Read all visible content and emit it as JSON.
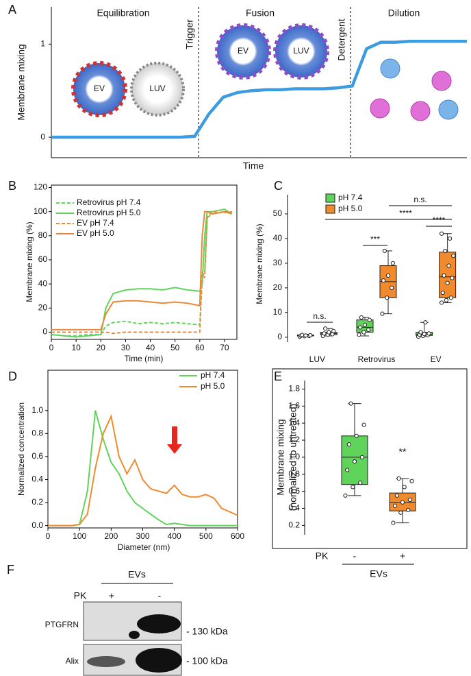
{
  "panel_labels": [
    "A",
    "B",
    "C",
    "D",
    "E",
    "F"
  ],
  "chart_data": [
    {
      "type": "line",
      "ylabel": "Membrane mixing",
      "xlabel": "Time",
      "ylim": [
        -0.22,
        1.4
      ],
      "yticks": [
        0,
        1
      ],
      "sections": [
        "Equilibration",
        "Fusion",
        "Dilution"
      ],
      "events": [
        "Trigger",
        "Detergent"
      ],
      "vesicle_labels": [
        "EV",
        "LUV",
        "EV",
        "LUV"
      ],
      "color": "#3d9be0",
      "values": [
        0,
        0,
        0,
        0,
        0,
        0,
        0,
        0,
        0,
        0,
        0.01,
        0.25,
        0.43,
        0.48,
        0.5,
        0.51,
        0.51,
        0.52,
        0.52,
        0.52,
        0.53,
        0.55,
        0.95,
        1.02,
        1.02,
        1.03,
        1.03,
        1.03,
        1.03,
        1.03
      ]
    },
    {
      "type": "line",
      "xlabel": "Time (min)",
      "ylabel": "Membrane mixing (%)",
      "xlim": [
        0,
        75
      ],
      "xticks": [
        0,
        10,
        20,
        30,
        40,
        50,
        60,
        70
      ],
      "ylim": [
        -6,
        122
      ],
      "yticks": [
        0,
        20,
        40,
        60,
        80,
        100,
        120
      ],
      "x": [
        0,
        5,
        10,
        15,
        20,
        22,
        25,
        30,
        35,
        40,
        45,
        50,
        55,
        60,
        61,
        62,
        63,
        65,
        70,
        73
      ],
      "series": [
        {
          "name": "Retrovirus pH 7.4",
          "color": "#5fd35a",
          "style": "dashed",
          "values": [
            -2,
            -3,
            -3,
            -2,
            -2,
            5,
            8,
            9,
            7,
            8,
            7,
            8,
            7,
            6,
            45,
            50,
            95,
            98,
            100,
            98
          ]
        },
        {
          "name": "Retrovirus pH 5.0",
          "color": "#5fd35a",
          "style": "solid",
          "values": [
            -2,
            -3,
            -4,
            -3,
            -2,
            20,
            32,
            35,
            36,
            36,
            35,
            37,
            35,
            34,
            40,
            80,
            100,
            100,
            102,
            98
          ]
        },
        {
          "name": "EV pH 7.4",
          "color": "#e8893a",
          "style": "dashed",
          "values": [
            0,
            0,
            0,
            0,
            0,
            0,
            -1,
            0,
            0,
            0,
            0,
            0,
            0,
            0,
            50,
            45,
            95,
            100,
            99,
            100
          ]
        },
        {
          "name": "EV pH 5.0",
          "color": "#e8893a",
          "style": "solid",
          "values": [
            2,
            2,
            2,
            2,
            2,
            15,
            25,
            26,
            26,
            25,
            24,
            25,
            24,
            22,
            80,
            100,
            100,
            98,
            100,
            99
          ]
        }
      ]
    },
    {
      "type": "box",
      "ylabel": "Membrane mixing (%)",
      "categories": [
        "LUV",
        "Retrovirus",
        "EV"
      ],
      "ylim": [
        -2,
        55
      ],
      "yticks": [
        0,
        10,
        20,
        30,
        40,
        50
      ],
      "series": [
        {
          "name": "pH 7.4",
          "color": "#5fd35a",
          "boxes": [
            {
              "min": 0.3,
              "q1": 0.5,
              "median": 0.7,
              "q3": 0.9,
              "max": 1.2
            },
            {
              "min": 0.5,
              "q1": 2,
              "median": 4,
              "q3": 7,
              "max": 8
            },
            {
              "min": 0.3,
              "q1": 0.7,
              "median": 1.2,
              "q3": 2,
              "max": 6
            }
          ],
          "points": [
            [
              0.2,
              0.4,
              0.5,
              0.6,
              0.7,
              0.8,
              0.9
            ],
            [
              1,
              2,
              3,
              4,
              5,
              7,
              8
            ],
            [
              0.2,
              0.5,
              0.8,
              1,
              1.3,
              1.5,
              2,
              6
            ]
          ]
        },
        {
          "name": "pH 5.0",
          "color": "#f08a2c",
          "boxes": [
            {
              "min": 0.5,
              "q1": 1,
              "median": 1.5,
              "q3": 2,
              "max": 3.5
            },
            {
              "min": 9.5,
              "q1": 16,
              "median": 22.5,
              "q3": 29,
              "max": 35
            },
            {
              "min": 14,
              "q1": 16,
              "median": 24.5,
              "q3": 34.5,
              "max": 42
            }
          ],
          "points": [
            [
              0.5,
              1,
              1.2,
              1.5,
              2,
              2.5,
              3.5
            ],
            [
              9.5,
              16,
              20,
              23,
              25,
              30,
              35
            ],
            [
              14,
              15,
              16,
              18,
              22,
              24,
              25,
              29,
              33,
              35,
              40,
              42
            ]
          ]
        }
      ],
      "annotations": [
        "n.s.",
        "***",
        "****",
        "****",
        "n.s."
      ]
    },
    {
      "type": "line",
      "xlabel": "Diameter (nm)",
      "ylabel": "Normalized concentration",
      "xlim": [
        0,
        600
      ],
      "xticks": [
        0,
        100,
        200,
        300,
        400,
        500,
        600
      ],
      "ylim": [
        -0.02,
        1.35
      ],
      "yticks": [
        {
          "value": 0,
          "label": "0.0"
        },
        0.2,
        0.4,
        0.6,
        0.8,
        {
          "value": 1,
          "label": "1.0"
        }
      ],
      "x": [
        0,
        25,
        50,
        75,
        100,
        125,
        150,
        175,
        200,
        225,
        250,
        275,
        300,
        325,
        350,
        375,
        400,
        425,
        450,
        475,
        500,
        525,
        550,
        575,
        600
      ],
      "series": [
        {
          "name": "pH 7.4",
          "color": "#5fd35a",
          "style": "solid",
          "values": [
            0,
            0,
            0,
            0,
            0.01,
            0.3,
            1.0,
            0.75,
            0.55,
            0.45,
            0.3,
            0.2,
            0.15,
            0.1,
            0.05,
            0.01,
            0.02,
            0.01,
            0,
            0,
            0,
            0,
            0,
            0,
            0
          ]
        },
        {
          "name": "pH 5.0",
          "color": "#f08a2c",
          "style": "solid",
          "values": [
            0,
            0,
            0,
            0,
            0.01,
            0.1,
            0.5,
            0.8,
            0.95,
            0.6,
            0.45,
            0.57,
            0.4,
            0.32,
            0.3,
            0.28,
            0.35,
            0.27,
            0.25,
            0.25,
            0.27,
            0.24,
            0.15,
            0.12,
            0.09
          ]
        }
      ]
    },
    {
      "type": "box",
      "ylabel": [
        "Membrane mixing",
        "(normalized to untreated)"
      ],
      "categories": [
        "-",
        "+"
      ],
      "row_label": "PK",
      "group_label": "EVs",
      "ylim": [
        0.09,
        1.9
      ],
      "yticks": [
        0.2,
        0.4,
        0.6,
        0.8,
        {
          "value": 1,
          "label": "1.0"
        },
        1.2,
        1.4,
        1.6,
        1.8
      ],
      "colors": [
        "#5fd35a",
        "#f08a2c"
      ],
      "boxes": [
        {
          "min": 0.55,
          "q1": 0.68,
          "median": 1.0,
          "q3": 1.25,
          "max": 1.63
        },
        {
          "min": 0.23,
          "q1": 0.37,
          "median": 0.47,
          "q3": 0.58,
          "max": 0.75
        }
      ],
      "points": [
        [
          0.55,
          0.65,
          0.7,
          0.85,
          0.95,
          1.0,
          1.15,
          1.25,
          1.38,
          1.63
        ],
        [
          0.23,
          0.35,
          0.38,
          0.43,
          0.47,
          0.5,
          0.55,
          0.65,
          0.72,
          0.75
        ]
      ],
      "annotations": [
        "**"
      ]
    }
  ],
  "blot": {
    "header": "EVs",
    "row_label": "PK",
    "lanes": [
      "+",
      "-"
    ],
    "proteins": [
      "PTGFRN",
      "Alix"
    ],
    "markers": [
      "- 130 kDa",
      "- 100 kDa"
    ]
  }
}
